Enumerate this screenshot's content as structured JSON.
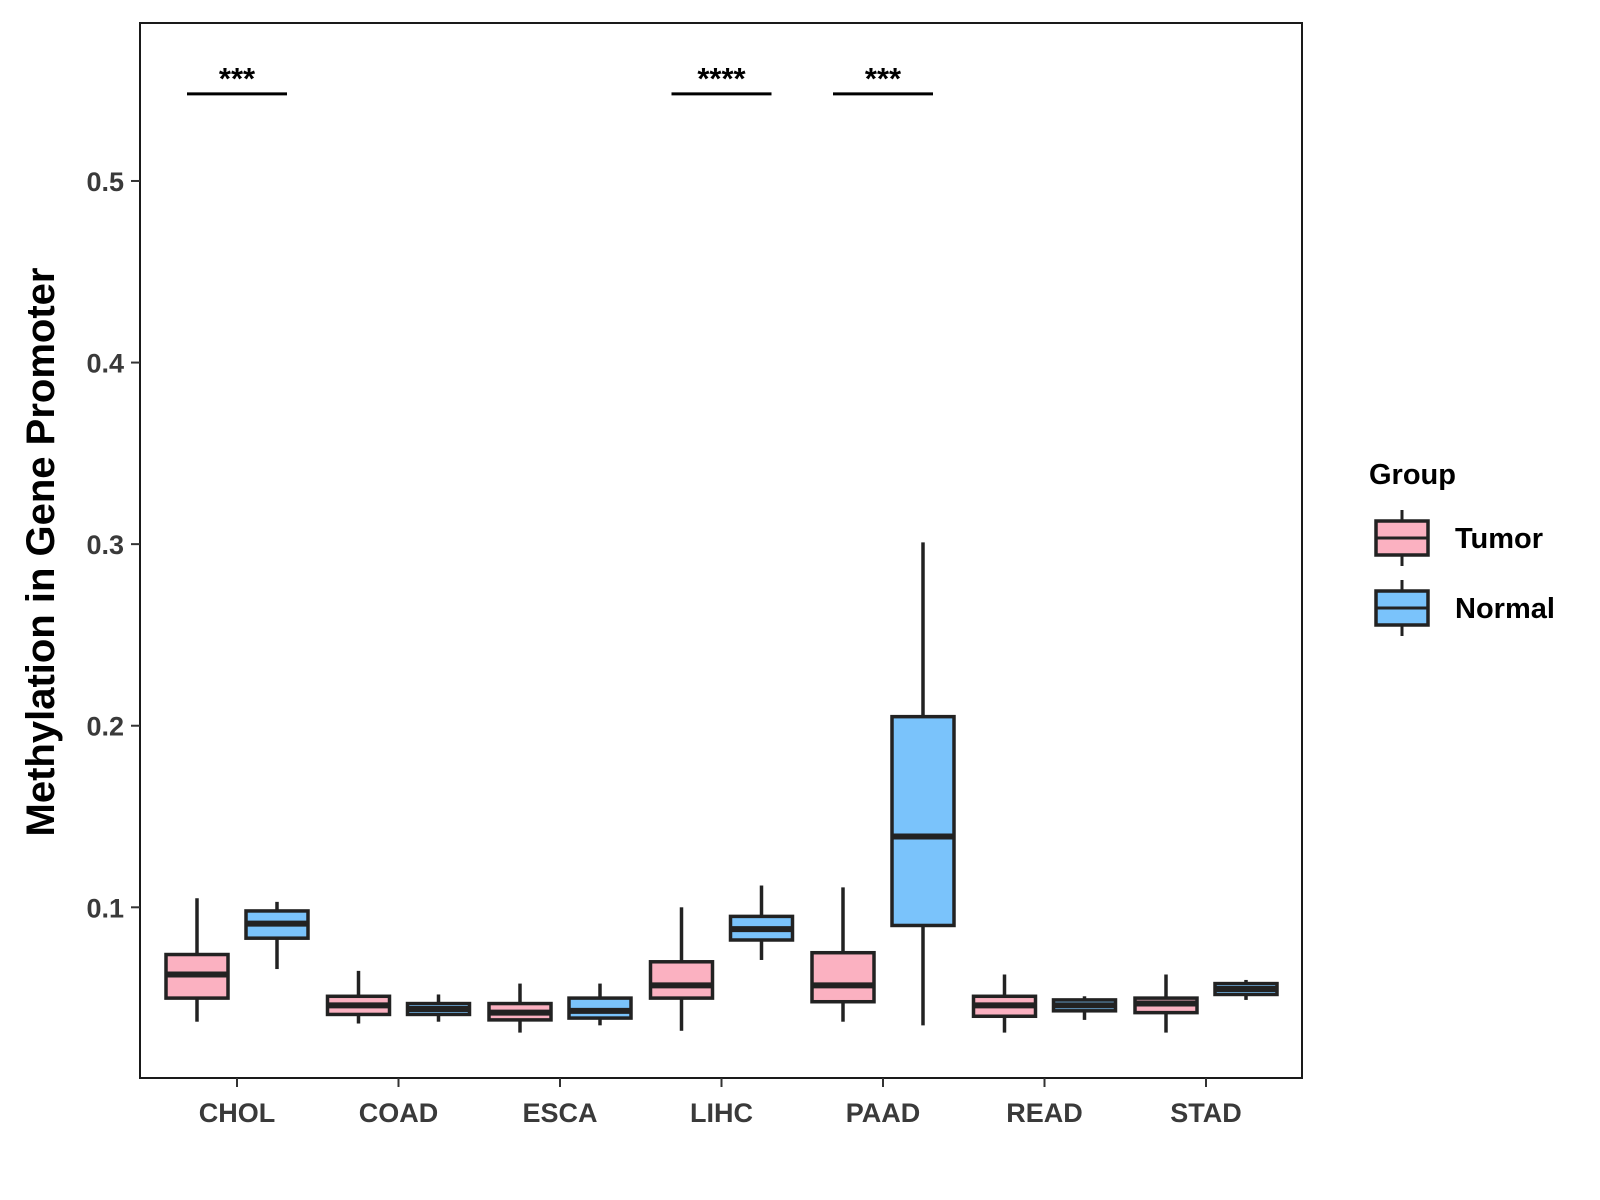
{
  "chart_data": {
    "type": "boxplot",
    "title": "",
    "xlabel": "",
    "ylabel": "Methylation in Gene Promoter",
    "ylim": [
      0.006,
      0.587
    ],
    "yticks": [
      0.1,
      0.2,
      0.3,
      0.4,
      0.5
    ],
    "ytick_labels": [
      "0.1",
      "0.2",
      "0.3",
      "0.4",
      "0.5"
    ],
    "categories": [
      "CHOL",
      "COAD",
      "ESCA",
      "LIHC",
      "PAAD",
      "READ",
      "STAD"
    ],
    "legend": {
      "title": "Group",
      "position": "right",
      "entries": [
        {
          "name": "Tumor",
          "color": "#fbb1c1"
        },
        {
          "name": "Normal",
          "color": "#7ac3fb"
        }
      ]
    },
    "series": [
      {
        "name": "Tumor",
        "color": "#fbb1c1",
        "boxes": [
          {
            "min": 0.037,
            "q1": 0.05,
            "median": 0.063,
            "q3": 0.074,
            "max": 0.105
          },
          {
            "min": 0.036,
            "q1": 0.041,
            "median": 0.046,
            "q3": 0.051,
            "max": 0.065
          },
          {
            "min": 0.031,
            "q1": 0.038,
            "median": 0.042,
            "q3": 0.047,
            "max": 0.058
          },
          {
            "min": 0.032,
            "q1": 0.05,
            "median": 0.057,
            "q3": 0.07,
            "max": 0.1
          },
          {
            "min": 0.037,
            "q1": 0.048,
            "median": 0.057,
            "q3": 0.075,
            "max": 0.111
          },
          {
            "min": 0.031,
            "q1": 0.04,
            "median": 0.046,
            "q3": 0.051,
            "max": 0.063
          },
          {
            "min": 0.031,
            "q1": 0.042,
            "median": 0.047,
            "q3": 0.05,
            "max": 0.063
          }
        ]
      },
      {
        "name": "Normal",
        "color": "#7ac3fb",
        "boxes": [
          {
            "min": 0.066,
            "q1": 0.083,
            "median": 0.091,
            "q3": 0.098,
            "max": 0.103
          },
          {
            "min": 0.037,
            "q1": 0.041,
            "median": 0.044,
            "q3": 0.047,
            "max": 0.052
          },
          {
            "min": 0.035,
            "q1": 0.039,
            "median": 0.043,
            "q3": 0.05,
            "max": 0.058
          },
          {
            "min": 0.071,
            "q1": 0.082,
            "median": 0.088,
            "q3": 0.095,
            "max": 0.112
          },
          {
            "min": 0.035,
            "q1": 0.09,
            "median": 0.139,
            "q3": 0.205,
            "max": 0.301
          },
          {
            "min": 0.038,
            "q1": 0.043,
            "median": 0.046,
            "q3": 0.049,
            "max": 0.051
          },
          {
            "min": 0.049,
            "q1": 0.052,
            "median": 0.055,
            "q3": 0.058,
            "max": 0.06
          }
        ]
      }
    ],
    "annotations": [
      {
        "category": "CHOL",
        "label": "***",
        "y": 0.548
      },
      {
        "category": "LIHC",
        "label": "****",
        "y": 0.548
      },
      {
        "category": "PAAD",
        "label": "***",
        "y": 0.548
      }
    ]
  }
}
